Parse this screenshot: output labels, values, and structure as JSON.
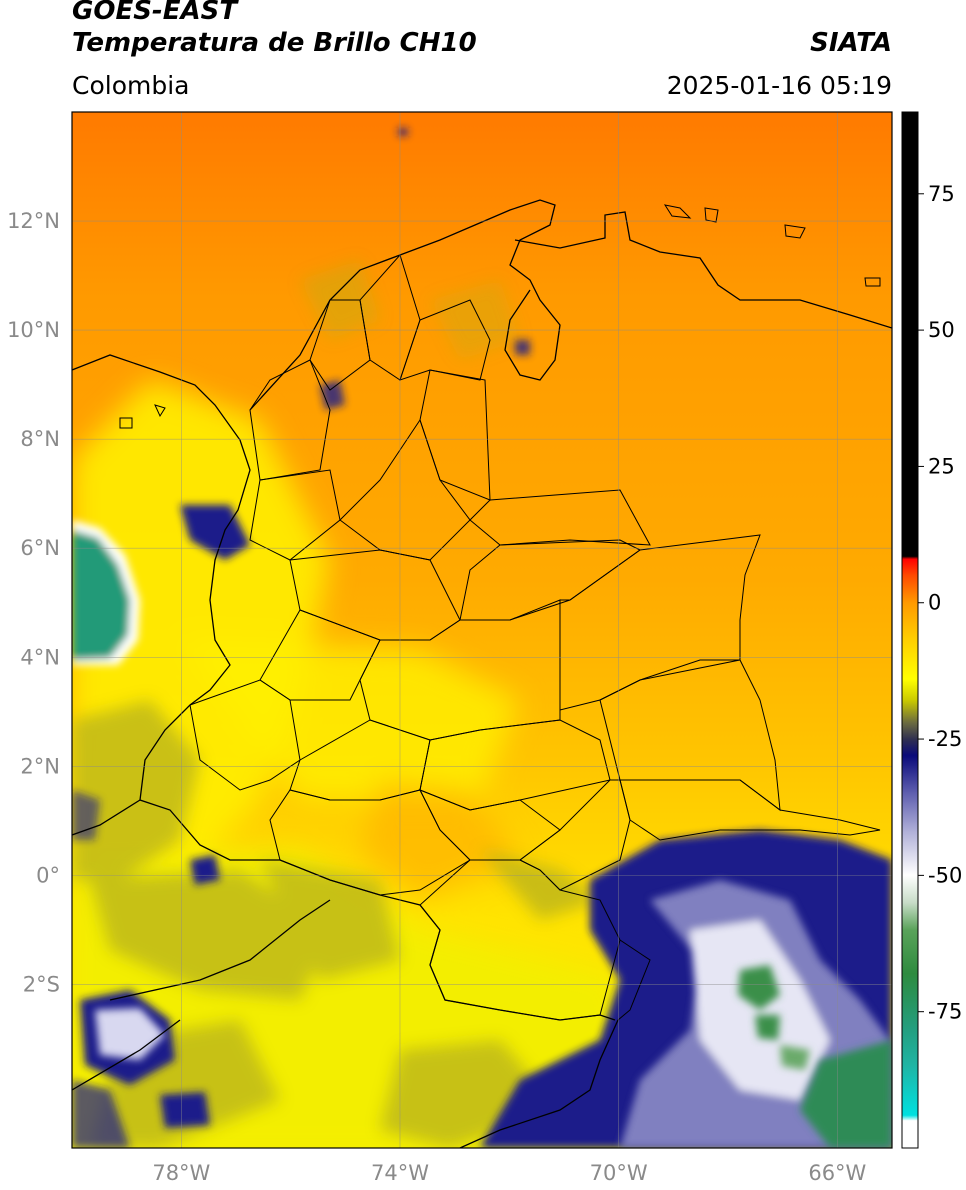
{
  "header": {
    "satellite": "GOES-EAST",
    "product": "Temperatura de Brillo CH10",
    "region": "Colombia",
    "brand": "SIATA",
    "datetime": "2025-01-16 05:19"
  },
  "map": {
    "lon_range": [
      -80,
      -65
    ],
    "lat_range": [
      -5,
      14
    ],
    "lat_ticks": [
      {
        "value": 12,
        "label": "12°N"
      },
      {
        "value": 10,
        "label": "10°N"
      },
      {
        "value": 8,
        "label": "8°N"
      },
      {
        "value": 6,
        "label": "6°N"
      },
      {
        "value": 4,
        "label": "4°N"
      },
      {
        "value": 2,
        "label": "2°N"
      },
      {
        "value": 0,
        "label": "0°"
      },
      {
        "value": -2,
        "label": "2°S"
      }
    ],
    "lon_ticks": [
      {
        "value": -78,
        "label": "78°W"
      },
      {
        "value": -74,
        "label": "74°W"
      },
      {
        "value": -70,
        "label": "70°W"
      },
      {
        "value": -66,
        "label": "66°W"
      }
    ]
  },
  "colorbar": {
    "range": [
      -100,
      90
    ],
    "ticks": [
      {
        "value": 75,
        "label": "75"
      },
      {
        "value": 50,
        "label": "50"
      },
      {
        "value": 25,
        "label": "25"
      },
      {
        "value": 0,
        "label": "0"
      },
      {
        "value": -25,
        "label": "-25"
      },
      {
        "value": -50,
        "label": "-50"
      },
      {
        "value": -75,
        "label": "-75"
      }
    ],
    "stops": [
      {
        "value": -100,
        "color": "#ffffff"
      },
      {
        "value": -95,
        "color": "#ffffff"
      },
      {
        "value": -94,
        "color": "#00e0e0"
      },
      {
        "value": -85,
        "color": "#1fb5a5"
      },
      {
        "value": -78,
        "color": "#239e7e"
      },
      {
        "value": -68,
        "color": "#2e8b3f"
      },
      {
        "value": -60,
        "color": "#5aa35a"
      },
      {
        "value": -55,
        "color": "#c8dcc8"
      },
      {
        "value": -50,
        "color": "#ffffff"
      },
      {
        "value": -42,
        "color": "#b0b0d8"
      },
      {
        "value": -35,
        "color": "#6060b0"
      },
      {
        "value": -28,
        "color": "#0a0a7a"
      },
      {
        "value": -25,
        "color": "#303050"
      },
      {
        "value": -22,
        "color": "#6b6b40"
      },
      {
        "value": -18,
        "color": "#c8c800"
      },
      {
        "value": -14,
        "color": "#ffff00"
      },
      {
        "value": -7,
        "color": "#ffd000"
      },
      {
        "value": 0,
        "color": "#ff9a00"
      },
      {
        "value": 5,
        "color": "#ff4a00"
      },
      {
        "value": 8,
        "color": "#ff0000"
      },
      {
        "value": 8.5,
        "color": "#000000"
      },
      {
        "value": 90,
        "color": "#000000"
      }
    ]
  }
}
